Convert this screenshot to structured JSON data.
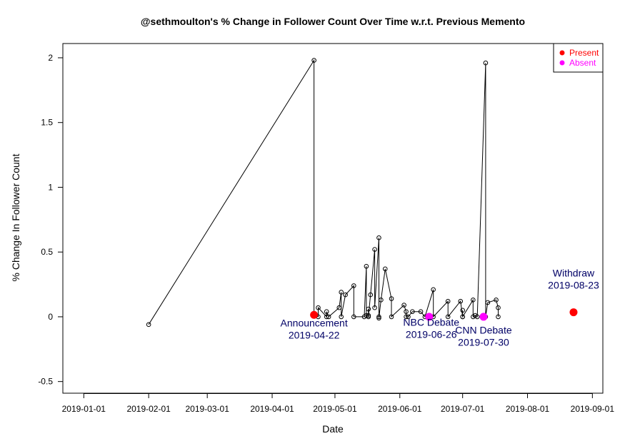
{
  "chart_data": {
    "type": "scatter",
    "title": "@sethmoulton's % Change in Follower Count Over Time w.r.t. Previous Memento",
    "xlabel": "Date",
    "ylabel": "% Change In Follower Count",
    "xlim": [
      "2018-12-22",
      "2019-09-06"
    ],
    "ylim": [
      -0.59,
      2.11
    ],
    "x_ticks": [
      "2019-01-01",
      "2019-02-01",
      "2019-03-01",
      "2019-04-01",
      "2019-05-01",
      "2019-06-01",
      "2019-07-01",
      "2019-08-01",
      "2019-09-01"
    ],
    "y_ticks": [
      -0.5,
      0,
      0.5,
      1,
      1.5,
      2
    ],
    "y_tick_labels": [
      "-0.5",
      "0",
      "0.5",
      "1",
      "1.5",
      "2"
    ],
    "grid": false,
    "legend_position": "top-right",
    "legend": [
      {
        "label": "Present",
        "color": "#ff0000"
      },
      {
        "label": "Absent",
        "color": "#ff00ff"
      }
    ],
    "series": [
      {
        "values": [
          [
            "2019-02-01",
            -0.06
          ],
          [
            "2019-04-21",
            1.98
          ],
          [
            "2019-04-21",
            0.01
          ],
          [
            "2019-04-23",
            0.0
          ],
          [
            "2019-04-23",
            0.07
          ],
          [
            "2019-04-27",
            0.0
          ],
          [
            "2019-04-27",
            0.04
          ],
          [
            "2019-04-28",
            0.0
          ],
          [
            "2019-05-03",
            0.07
          ],
          [
            "2019-05-04",
            0.19
          ],
          [
            "2019-05-04",
            0.0
          ],
          [
            "2019-05-06",
            0.17
          ],
          [
            "2019-05-10",
            0.24
          ],
          [
            "2019-05-10",
            0.0
          ],
          [
            "2019-05-15",
            0.0
          ],
          [
            "2019-05-16",
            0.39
          ],
          [
            "2019-05-16",
            0.01
          ],
          [
            "2019-05-17",
            0.01
          ],
          [
            "2019-05-17",
            0.06
          ],
          [
            "2019-05-17",
            0.0
          ],
          [
            "2019-05-18",
            0.17
          ],
          [
            "2019-05-20",
            0.52
          ],
          [
            "2019-05-20",
            0.07
          ],
          [
            "2019-05-22",
            0.61
          ],
          [
            "2019-05-22",
            0.0
          ],
          [
            "2019-05-22",
            -0.01
          ],
          [
            "2019-05-23",
            0.13
          ],
          [
            "2019-05-25",
            0.37
          ],
          [
            "2019-05-28",
            0.14
          ],
          [
            "2019-05-28",
            0.0
          ],
          [
            "2019-06-03",
            0.09
          ],
          [
            "2019-06-04",
            0.04
          ],
          [
            "2019-06-04",
            0.0
          ],
          [
            "2019-06-05",
            0.0
          ],
          [
            "2019-06-07",
            0.04
          ],
          [
            "2019-06-11",
            0.04
          ],
          [
            "2019-06-13",
            0.0
          ],
          [
            "2019-06-17",
            0.21
          ],
          [
            "2019-06-17",
            0.0
          ],
          [
            "2019-06-24",
            0.12
          ],
          [
            "2019-06-24",
            0.0
          ],
          [
            "2019-06-30",
            0.12
          ],
          [
            "2019-07-01",
            0.0
          ],
          [
            "2019-07-01",
            0.05
          ],
          [
            "2019-07-01",
            0.0
          ],
          [
            "2019-07-06",
            0.13
          ],
          [
            "2019-07-06",
            0.0
          ],
          [
            "2019-07-07",
            0.01
          ],
          [
            "2019-07-08",
            0.0
          ],
          [
            "2019-07-12",
            1.96
          ],
          [
            "2019-07-12",
            0.0
          ],
          [
            "2019-07-13",
            0.11
          ],
          [
            "2019-07-17",
            0.13
          ],
          [
            "2019-07-18",
            0.07
          ],
          [
            "2019-07-18",
            0.0
          ]
        ]
      }
    ],
    "highlighted_points": [
      {
        "x": "2019-04-21",
        "y": 0.015,
        "status": "Present",
        "color": "#ff0000"
      },
      {
        "x": "2019-06-15",
        "y": 0.0,
        "status": "Absent",
        "color": "#ff00ff"
      },
      {
        "x": "2019-07-11",
        "y": 0.0,
        "status": "Absent",
        "color": "#ff00ff"
      },
      {
        "x": "2019-08-23",
        "y": 0.035,
        "status": "Present",
        "color": "#ff0000"
      }
    ],
    "annotations": [
      {
        "line1": "Announcement",
        "line2": "2019-04-22",
        "x": "2019-04-21",
        "y": -0.075,
        "color": "#000066"
      },
      {
        "line1": "NBC Debate",
        "line2": "2019-06-26",
        "x": "2019-06-16",
        "y": -0.07,
        "color": "#000066"
      },
      {
        "line1": "CNN Debate",
        "line2": "2019-07-30",
        "x": "2019-07-11",
        "y": -0.13,
        "color": "#000066"
      },
      {
        "line1": "Withdraw",
        "line2": "2019-08-23",
        "x": "2019-08-23",
        "y": 0.31,
        "color": "#000066"
      }
    ]
  }
}
